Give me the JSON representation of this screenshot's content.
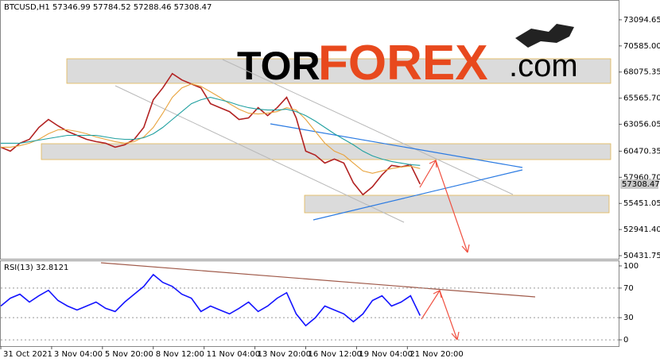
{
  "logo": {
    "part1": "TOR",
    "part2": "FOREX",
    "part3": ".com"
  },
  "chart_data": [
    {
      "type": "line",
      "title": "BTCUSD,H1  57346.99 57784.52 57288.46 57308.47",
      "x": [
        0,
        12,
        24,
        36,
        48,
        60,
        72,
        84,
        96,
        108,
        120,
        132,
        144,
        156,
        168,
        180,
        192,
        204,
        216,
        228,
        240,
        252,
        264,
        276,
        288,
        300,
        312,
        324,
        336,
        348,
        360,
        372,
        384,
        396,
        408,
        420,
        432,
        444,
        456,
        468,
        480,
        492,
        504,
        516,
        528
      ],
      "xlim": [
        0,
        778
      ],
      "ylim": [
        50130,
        74920
      ],
      "yticks": [
        73094.65,
        {
          "value": 70585,
          "label": "70585.00"
        },
        68075.35,
        {
          "value": 65565.7,
          "label": "65565.70"
        },
        63056.05,
        60470.35,
        {
          "value": 57960.7,
          "label": "57960.70"
        },
        55451.05,
        {
          "value": 52941.4,
          "label": "52941.40"
        },
        50431.75
      ],
      "price_marker": 57308.47,
      "series": [
        {
          "color": "#b22222",
          "values": [
            60853,
            60472,
            61233,
            61613,
            62754,
            63514,
            62906,
            62373,
            61993,
            61613,
            61385,
            61233,
            60853,
            61081,
            61613,
            62754,
            65415,
            66556,
            67924,
            67316,
            66936,
            66556,
            65035,
            64655,
            64274,
            63514,
            63666,
            64655,
            63894,
            64655,
            65643,
            63666,
            60472,
            60092,
            59332,
            59712,
            59332,
            57431,
            56290,
            57051,
            58192,
            59104,
            58952,
            59180,
            57308.47
          ]
        },
        {
          "color": "#e8a33d",
          "values": [
            60853,
            60853,
            61005,
            61233,
            61613,
            62145,
            62526,
            62526,
            62373,
            62145,
            61841,
            61613,
            61385,
            61233,
            61385,
            61841,
            62754,
            64122,
            65643,
            66556,
            66936,
            66708,
            66175,
            65643,
            65035,
            64503,
            64122,
            64046,
            64122,
            64274,
            64655,
            64428,
            63514,
            62373,
            61233,
            60472,
            60092,
            59332,
            58571,
            58343,
            58571,
            58800,
            58952,
            59028,
            58800
          ]
        },
        {
          "color": "#20a0a0",
          "values": [
            61233,
            61233,
            61233,
            61385,
            61537,
            61689,
            61841,
            61993,
            61993,
            61993,
            61993,
            61841,
            61689,
            61613,
            61613,
            61765,
            62145,
            62754,
            63514,
            64274,
            65035,
            65415,
            65643,
            65415,
            65187,
            64883,
            64655,
            64503,
            64428,
            64428,
            64503,
            64274,
            63894,
            63362,
            62754,
            62145,
            61613,
            61081,
            60472,
            60016,
            59712,
            59484,
            59332,
            59180,
            59104
          ]
        }
      ]
    },
    {
      "type": "line",
      "title": "RSI(13) 32.8121",
      "x": [
        0,
        12,
        24,
        36,
        48,
        60,
        72,
        84,
        96,
        108,
        120,
        132,
        144,
        156,
        168,
        180,
        192,
        204,
        216,
        228,
        240,
        252,
        264,
        276,
        288,
        300,
        312,
        324,
        336,
        348,
        360,
        372,
        384,
        396,
        408,
        420,
        432,
        444,
        456,
        468,
        480,
        492,
        504,
        516,
        528
      ],
      "xlim": [
        0,
        778
      ],
      "ylim": [
        -8.5,
        106.4
      ],
      "yticks": [
        100,
        70,
        30,
        0
      ],
      "xticks": [
        {
          "value": 0,
          "label": "31 Oct 2021"
        },
        {
          "value": 64,
          "label": "3 Nov 04:00"
        },
        {
          "value": 128,
          "label": "5 Nov 20:00"
        },
        {
          "value": 192,
          "label": "8 Nov 12:00"
        },
        {
          "value": 256,
          "label": "11 Nov 04:00"
        },
        {
          "value": 320,
          "label": "13 Nov 20:00"
        },
        {
          "value": 384,
          "label": "16 Nov 12:00"
        },
        {
          "value": 448,
          "label": "19 Nov 04:00"
        },
        {
          "value": 512,
          "label": "21 Nov 20:00"
        }
      ],
      "series": [
        {
          "color": "#1414ff",
          "values": [
            45.7,
            56.4,
            61.7,
            51.1,
            59.6,
            67,
            53.2,
            45.7,
            40.4,
            45.7,
            51.1,
            42.6,
            38.3,
            51.1,
            61.7,
            72.3,
            88.3,
            77.7,
            72.3,
            61.7,
            56.4,
            38.3,
            45.7,
            40.4,
            35.1,
            42.6,
            51.1,
            38.3,
            45.7,
            56.4,
            63.8,
            35.1,
            19.1,
            29.8,
            45.7,
            40.4,
            35.1,
            24.5,
            35.1,
            53.2,
            59.6,
            45.7,
            51.1,
            59.6,
            32.8121
          ]
        }
      ]
    }
  ]
}
